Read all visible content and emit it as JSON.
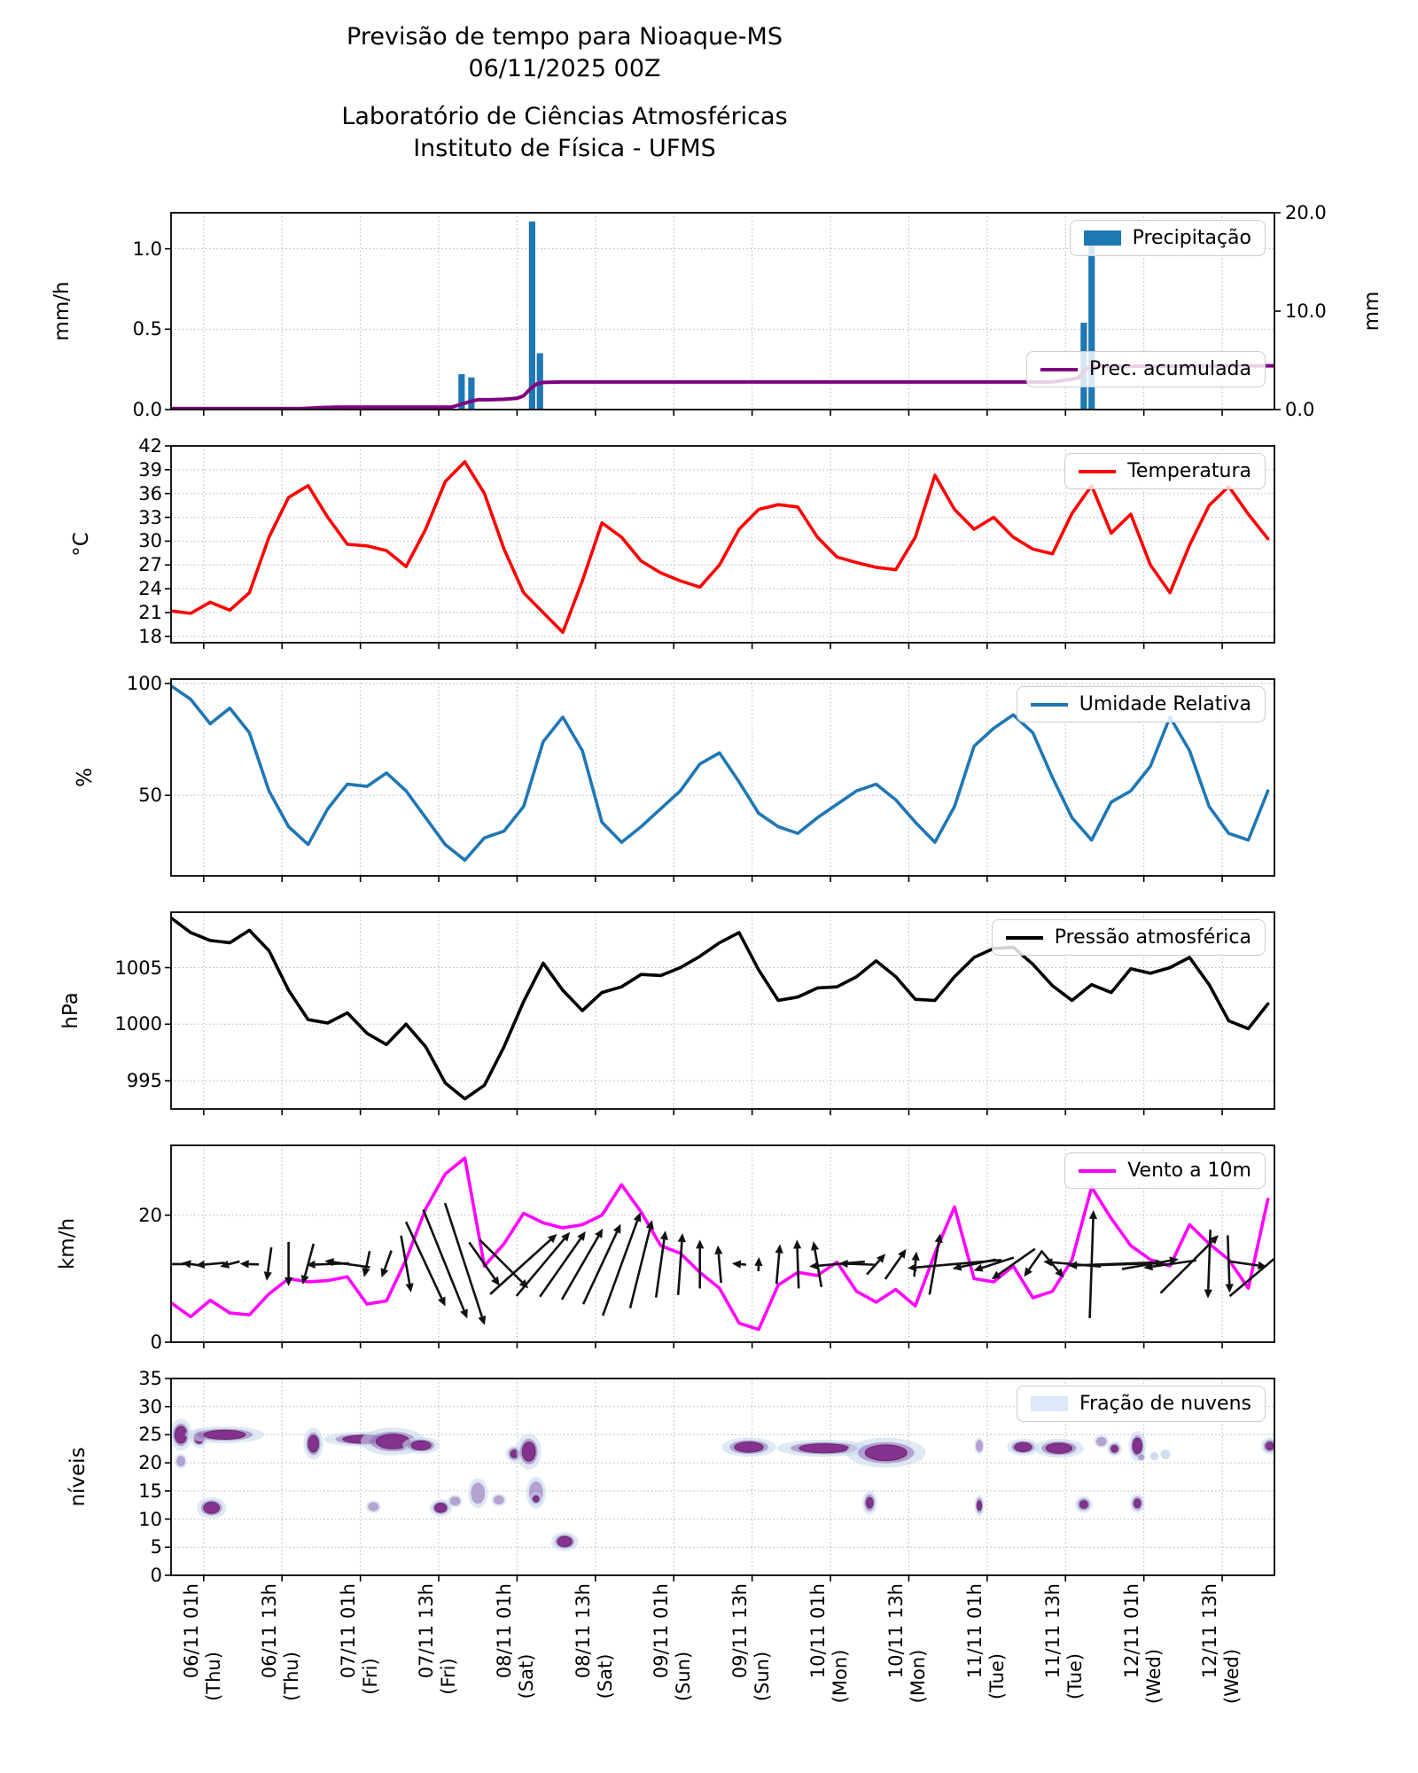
{
  "title": {
    "line1": "Previsão de tempo para Nioaque-MS",
    "line2": "06/11/2025 00Z"
  },
  "subtitle": {
    "line1": "Laboratório de Ciências Atmosféricas",
    "line2": "Instituto de Física - UFMS"
  },
  "colors": {
    "precip_bar": "#1f77b4",
    "accumulated": "#800080",
    "temperature": "#ff0000",
    "humidity": "#1f77b4",
    "pressure": "#000000",
    "wind": "#ff00ff",
    "quiver": "#111111",
    "cloud_core": "#822d8b",
    "cloud_mid": "#8f68b5",
    "cloud_halo": "#c9daed",
    "grid": "#b3b3b3",
    "legend_border": "#cccccc"
  },
  "x_axis": {
    "total_hours": 169,
    "tick_hours": [
      5,
      17,
      29,
      41,
      53,
      65,
      77,
      89,
      101,
      113,
      125,
      137,
      149,
      161
    ],
    "tick_labels": [
      {
        "date": "06/11 01h",
        "day": "(Thu)"
      },
      {
        "date": "06/11 13h",
        "day": "(Thu)"
      },
      {
        "date": "07/11 01h",
        "day": "(Fri)"
      },
      {
        "date": "07/11 13h",
        "day": "(Fri)"
      },
      {
        "date": "08/11 01h",
        "day": "(Sat)"
      },
      {
        "date": "08/11 13h",
        "day": "(Sat)"
      },
      {
        "date": "09/11 01h",
        "day": "(Sun)"
      },
      {
        "date": "09/11 13h",
        "day": "(Sun)"
      },
      {
        "date": "10/11 01h",
        "day": "(Mon)"
      },
      {
        "date": "10/11 13h",
        "day": "(Mon)"
      },
      {
        "date": "11/11 01h",
        "day": "(Tue)"
      },
      {
        "date": "11/11 13h",
        "day": "(Tue)"
      },
      {
        "date": "12/11 01h",
        "day": "(Wed)"
      },
      {
        "date": "12/11 13h",
        "day": "(Wed)"
      }
    ]
  },
  "chart_data": [
    {
      "id": "precipitacao",
      "type": "bar+line",
      "ylabel_left": "mm/h",
      "ylabel_right": "mm",
      "ylim_left": [
        0,
        1.224
      ],
      "yticks_left": [
        "0.0",
        "0.5",
        "1.0"
      ],
      "yticks_left_values": [
        0,
        0.5,
        1.0
      ],
      "ylim_right": [
        0,
        20
      ],
      "yticks_right": [
        "0.0",
        "10.0",
        "20.0"
      ],
      "yticks_right_values": [
        0,
        10,
        20
      ],
      "legend": [
        {
          "label": "Precipitação",
          "swatch": "bar",
          "color": "#1f77b4"
        },
        {
          "label": "Prec. acumulada",
          "swatch": "line",
          "color": "#800080"
        }
      ],
      "bars": {
        "hours": [
          44.5,
          46,
          55.3,
          56.5,
          139.8,
          141
        ],
        "values_mmh": [
          0.22,
          0.2,
          1.17,
          0.35,
          0.54,
          1.09
        ]
      },
      "accumulated_mm": [
        [
          0,
          0.1
        ],
        [
          20,
          0.1
        ],
        [
          23,
          0.2
        ],
        [
          26,
          0.25
        ],
        [
          43,
          0.25
        ],
        [
          44,
          0.45
        ],
        [
          45,
          0.65
        ],
        [
          46,
          0.85
        ],
        [
          47,
          1.0
        ],
        [
          49,
          1.0
        ],
        [
          51,
          1.05
        ],
        [
          53,
          1.15
        ],
        [
          54,
          1.4
        ],
        [
          55,
          2.1
        ],
        [
          56,
          2.6
        ],
        [
          57,
          2.76
        ],
        [
          60,
          2.8
        ],
        [
          135,
          2.8
        ],
        [
          139,
          3.2
        ],
        [
          140,
          4.1
        ],
        [
          141,
          4.35
        ],
        [
          143,
          4.4
        ],
        [
          157,
          4.42
        ],
        [
          169,
          4.45
        ]
      ]
    },
    {
      "id": "temperatura",
      "type": "line",
      "ylabel": "°C",
      "ylim": [
        17.2,
        42
      ],
      "yticks": [
        18,
        21,
        24,
        27,
        30,
        33,
        36,
        39,
        42
      ],
      "legend": [
        {
          "label": "Temperatura",
          "swatch": "line",
          "color": "#ff0000"
        }
      ],
      "series": {
        "name": "Temperatura",
        "x_step_hours": 3,
        "values": [
          21.2,
          20.9,
          22.3,
          21.3,
          23.5,
          30.5,
          35.5,
          37.0,
          33.0,
          29.6,
          29.4,
          28.8,
          26.8,
          31.5,
          37.5,
          40.0,
          36.0,
          29.0,
          23.5,
          21.0,
          18.5,
          25.0,
          32.3,
          30.5,
          27.5,
          26.0,
          25.0,
          24.2,
          27.0,
          31.5,
          34.0,
          34.6,
          34.3,
          30.5,
          28.0,
          27.3,
          26.7,
          26.4,
          30.5,
          38.3,
          34.0,
          31.5,
          33.0,
          30.5,
          29.0,
          28.4,
          33.5,
          37.0,
          31.0,
          33.4,
          27.0,
          23.5,
          29.5,
          34.5,
          36.9,
          33.4,
          30.3
        ]
      }
    },
    {
      "id": "umidade",
      "type": "line",
      "ylabel": "%",
      "ylim": [
        14,
        102
      ],
      "yticks": [
        50,
        100
      ],
      "legend": [
        {
          "label": "Umidade Relativa",
          "swatch": "line",
          "color": "#1f77b4"
        }
      ],
      "series": {
        "name": "Umidade Relativa",
        "x_step_hours": 3,
        "values": [
          99,
          93,
          82,
          89,
          78,
          52,
          36,
          28,
          44,
          55,
          54,
          60,
          52,
          40,
          28,
          21,
          31,
          34,
          45,
          74,
          85,
          70,
          38,
          29,
          36,
          44,
          52,
          64,
          69,
          56,
          42,
          36,
          33,
          40,
          46,
          52,
          55,
          48,
          38,
          29,
          45,
          72,
          80,
          86,
          78,
          58,
          40,
          30,
          47,
          52,
          63,
          85,
          70,
          45,
          33,
          30,
          52
        ]
      }
    },
    {
      "id": "pressao",
      "type": "line",
      "ylabel": "hPa",
      "ylim": [
        992.5,
        1009.9
      ],
      "yticks": [
        995,
        1000,
        1005
      ],
      "legend": [
        {
          "label": "Pressão atmosférica",
          "swatch": "line",
          "color": "#000000"
        }
      ],
      "series": {
        "name": "Pressão atmosférica",
        "x_step_hours": 3,
        "values": [
          1009.4,
          1008.1,
          1007.4,
          1007.2,
          1008.3,
          1006.5,
          1003.0,
          1000.4,
          1000.1,
          1001.0,
          999.2,
          998.2,
          1000.0,
          998.0,
          994.8,
          993.4,
          994.6,
          998.0,
          1002.0,
          1005.4,
          1003.0,
          1001.2,
          1002.8,
          1003.3,
          1004.4,
          1004.3,
          1005.0,
          1006.0,
          1007.2,
          1008.1,
          1004.8,
          1002.1,
          1002.4,
          1003.2,
          1003.3,
          1004.2,
          1005.6,
          1004.2,
          1002.2,
          1002.1,
          1004.2,
          1005.9,
          1006.7,
          1006.8,
          1005.3,
          1003.4,
          1002.1,
          1003.5,
          1002.8,
          1004.9,
          1004.5,
          1005.0,
          1005.9,
          1003.5,
          1000.3,
          999.6,
          1001.8
        ]
      }
    },
    {
      "id": "vento",
      "type": "line+quiver",
      "ylabel": "km/h",
      "ylim": [
        0,
        31
      ],
      "yticks": [
        0,
        20
      ],
      "legend": [
        {
          "label": "Vento a 10m",
          "swatch": "line",
          "color": "#ff00ff"
        }
      ],
      "series": {
        "name": "Vento a 10m",
        "x_step_hours": 3,
        "values": [
          6.2,
          4.0,
          6.6,
          4.6,
          4.3,
          7.6,
          10.0,
          9.5,
          9.7,
          10.3,
          6.0,
          6.5,
          13.0,
          21.0,
          26.5,
          29.0,
          12.0,
          15.5,
          20.3,
          18.8,
          18.0,
          18.5,
          20.0,
          24.8,
          20.5,
          15.2,
          14.0,
          11.0,
          8.5,
          3.0,
          2.0,
          9.0,
          11.0,
          10.5,
          12.6,
          8.0,
          6.3,
          8.3,
          5.7,
          14.0,
          21.3,
          10.0,
          9.5,
          12.0,
          7.0,
          8.0,
          13.0,
          24.4,
          19.5,
          15.2,
          13.0,
          12.0,
          18.5,
          15.5,
          13.0,
          8.5,
          22.5
        ]
      },
      "quiver": {
        "center_kmh": 12.3,
        "angles_deg": [
          180,
          172,
          185,
          195,
          178,
          262,
          270,
          255,
          182,
          172,
          258,
          250,
          280,
          295,
          292,
          288,
          305,
          315,
          42,
          50,
          55,
          60,
          65,
          70,
          76,
          82,
          86,
          90,
          95,
          175,
          88,
          85,
          92,
          100,
          185,
          178,
          48,
          55,
          85,
          80,
          185,
          192,
          198,
          215,
          235,
          310,
          175,
          88,
          182,
          2,
          10,
          188,
          45,
          268,
          272,
          352,
          40
        ]
      }
    },
    {
      "id": "nuvens",
      "type": "contour",
      "ylabel": "níveis",
      "ylim": [
        0,
        35
      ],
      "yticks": [
        0,
        5,
        10,
        15,
        20,
        25,
        30,
        35
      ],
      "legend": [
        {
          "label": "Fração de nuvens",
          "swatch": "patch",
          "color": "#dce9f6"
        }
      ],
      "blobs": [
        {
          "h": 1.5,
          "l": 25,
          "rh": 0.9,
          "rl": 1.5,
          "i": 3
        },
        {
          "h": 1.5,
          "l": 20.3,
          "rh": 0.5,
          "rl": 0.7,
          "i": 1
        },
        {
          "h": 4.3,
          "l": 24.4,
          "rh": 0.7,
          "rl": 0.9,
          "i": 3
        },
        {
          "h": 8.2,
          "l": 25,
          "rh": 3.2,
          "rl": 0.8,
          "i": 3
        },
        {
          "h": 6.2,
          "l": 12,
          "rh": 1.2,
          "rl": 1.0,
          "i": 3
        },
        {
          "h": 21.8,
          "l": 23.4,
          "rh": 0.8,
          "rl": 1.5,
          "i": 3
        },
        {
          "h": 29.5,
          "l": 24.2,
          "rh": 3.2,
          "rl": 0.7,
          "i": 3
        },
        {
          "h": 34,
          "l": 23.8,
          "rh": 2.6,
          "rl": 1.3,
          "i": 3
        },
        {
          "h": 38.3,
          "l": 23.1,
          "rh": 1.5,
          "rl": 0.8,
          "i": 3
        },
        {
          "h": 31,
          "l": 12.2,
          "rh": 0.6,
          "rl": 0.6,
          "i": 1
        },
        {
          "h": 41.3,
          "l": 12,
          "rh": 0.9,
          "rl": 0.8,
          "i": 3
        },
        {
          "h": 43.5,
          "l": 13.2,
          "rh": 0.6,
          "rl": 0.6,
          "i": 1
        },
        {
          "h": 47,
          "l": 14.6,
          "rh": 0.8,
          "rl": 1.4,
          "i": 1
        },
        {
          "h": 50.2,
          "l": 13.4,
          "rh": 0.6,
          "rl": 0.6,
          "i": 1
        },
        {
          "h": 52.6,
          "l": 21.6,
          "rh": 0.7,
          "rl": 0.8,
          "i": 2
        },
        {
          "h": 54.8,
          "l": 22,
          "rh": 1.0,
          "rl": 1.7,
          "i": 3
        },
        {
          "h": 55.9,
          "l": 14.7,
          "rh": 0.8,
          "rl": 1.5,
          "i": 1
        },
        {
          "h": 55.9,
          "l": 13.6,
          "rh": 0.5,
          "rl": 0.6,
          "i": 2
        },
        {
          "h": 60.3,
          "l": 6,
          "rh": 1.1,
          "rl": 0.9,
          "i": 3
        },
        {
          "h": 88.5,
          "l": 22.8,
          "rh": 2.2,
          "rl": 0.9,
          "i": 3
        },
        {
          "h": 100,
          "l": 22.6,
          "rh": 3.8,
          "rl": 0.8,
          "i": 3
        },
        {
          "h": 109.5,
          "l": 21.8,
          "rh": 3.2,
          "rl": 1.4,
          "i": 3
        },
        {
          "h": 107,
          "l": 12.9,
          "rh": 0.6,
          "rl": 1.1,
          "i": 2
        },
        {
          "h": 123.8,
          "l": 23,
          "rh": 0.4,
          "rl": 0.8,
          "i": 1
        },
        {
          "h": 123.8,
          "l": 12.4,
          "rh": 0.4,
          "rl": 1.0,
          "i": 2
        },
        {
          "h": 130.5,
          "l": 22.8,
          "rh": 1.3,
          "rl": 0.8,
          "i": 3
        },
        {
          "h": 136,
          "l": 22.6,
          "rh": 2.0,
          "rl": 0.9,
          "i": 3
        },
        {
          "h": 139.8,
          "l": 12.6,
          "rh": 0.7,
          "rl": 0.8,
          "i": 2
        },
        {
          "h": 142.5,
          "l": 23.8,
          "rh": 0.6,
          "rl": 0.6,
          "i": 1
        },
        {
          "h": 144.5,
          "l": 22.5,
          "rh": 0.6,
          "rl": 0.7,
          "i": 2
        },
        {
          "h": 148,
          "l": 23,
          "rh": 0.7,
          "rl": 1.4,
          "i": 3
        },
        {
          "h": 148.6,
          "l": 21,
          "rh": 0.35,
          "rl": 0.4,
          "i": 1
        },
        {
          "h": 148,
          "l": 12.8,
          "rh": 0.6,
          "rl": 0.9,
          "i": 2
        },
        {
          "h": 150.6,
          "l": 21.2,
          "rh": 0.35,
          "rl": 0.4,
          "i": 0
        },
        {
          "h": 152.3,
          "l": 21.5,
          "rh": 0.4,
          "rl": 0.45,
          "i": 0
        },
        {
          "h": 168.3,
          "l": 23,
          "rh": 0.7,
          "rl": 0.8,
          "i": 2
        }
      ]
    }
  ]
}
